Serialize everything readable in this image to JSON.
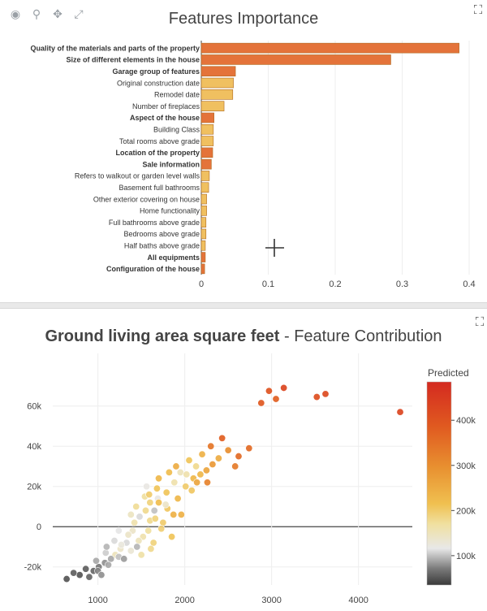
{
  "chart_data": [
    {
      "type": "bar",
      "orientation": "horizontal",
      "title": "Features Importance",
      "categories": [
        "Quality of the materials and parts of the property",
        "Size of different elements in the house",
        "Garage group of features",
        "Original construction date",
        "Remodel date",
        "Number of fireplaces",
        "Aspect of the house",
        "Building Class",
        "Total rooms above grade",
        "Location of the property",
        "Sale information",
        "Refers to walkout or garden level walls",
        "Basement full bathrooms",
        "Other exterior covering on house",
        "Home functionality",
        "Full bathrooms above grade",
        "Bedrooms above grade",
        "Half baths above grade",
        "All equipments",
        "Configuration of the house"
      ],
      "values": [
        0.385,
        0.283,
        0.051,
        0.048,
        0.047,
        0.034,
        0.019,
        0.018,
        0.018,
        0.017,
        0.015,
        0.012,
        0.011,
        0.008,
        0.008,
        0.007,
        0.007,
        0.006,
        0.006,
        0.005
      ],
      "group_flags": [
        true,
        true,
        true,
        false,
        false,
        false,
        true,
        false,
        false,
        true,
        true,
        false,
        false,
        false,
        false,
        false,
        false,
        false,
        true,
        true
      ],
      "xlim": [
        0,
        0.4
      ],
      "xticks": [
        "0",
        "0.1",
        "0.2",
        "0.3",
        "0.4"
      ],
      "colors": {
        "group": "#e4733a",
        "single": "#f0c060",
        "edge": "#b06a20"
      }
    },
    {
      "type": "scatter",
      "title_bold": "Ground living area square feet",
      "title_rest": " - Feature Contribution",
      "xlim": [
        480,
        4620
      ],
      "ylim": [
        -29000,
        72000
      ],
      "xticks": [
        1000,
        2000,
        3000,
        4000
      ],
      "yticks": [
        "-20k",
        "0",
        "20k",
        "40k",
        "60k"
      ],
      "yticks_values": [
        -20000,
        0,
        20000,
        40000,
        60000
      ],
      "colorbar": {
        "title": "Predicted",
        "ticks": [
          "100k",
          "200k",
          "300k",
          "400k"
        ],
        "tick_values": [
          100000,
          200000,
          300000,
          400000
        ],
        "range": [
          35000,
          485000
        ]
      },
      "points": [
        [
          4480,
          57000,
          430000
        ],
        [
          3140,
          69000,
          430000
        ],
        [
          2970,
          67500,
          400000
        ],
        [
          3520,
          64500,
          410000
        ],
        [
          3620,
          66000,
          420000
        ],
        [
          3050,
          63500,
          380000
        ],
        [
          2880,
          61500,
          390000
        ],
        [
          2740,
          39000,
          360000
        ],
        [
          2430,
          44000,
          380000
        ],
        [
          2620,
          35000,
          360000
        ],
        [
          2580,
          30000,
          330000
        ],
        [
          2300,
          40000,
          340000
        ],
        [
          2500,
          38000,
          300000
        ],
        [
          2390,
          34000,
          250000
        ],
        [
          2200,
          36000,
          240000
        ],
        [
          2050,
          33000,
          210000
        ],
        [
          2130,
          30000,
          180000
        ],
        [
          2250,
          28000,
          260000
        ],
        [
          1950,
          27000,
          150000
        ],
        [
          2100,
          24000,
          230000
        ],
        [
          1880,
          22000,
          160000
        ],
        [
          2010,
          20000,
          200000
        ],
        [
          1790,
          17000,
          210000
        ],
        [
          1690,
          14000,
          120000
        ],
        [
          1600,
          12000,
          190000
        ],
        [
          1550,
          8000,
          180000
        ],
        [
          1480,
          5000,
          110000
        ],
        [
          1600,
          3000,
          180000
        ],
        [
          1750,
          2000,
          200000
        ],
        [
          1870,
          6000,
          240000
        ],
        [
          1400,
          -2000,
          140000
        ],
        [
          1520,
          -5000,
          160000
        ],
        [
          1640,
          -8000,
          190000
        ],
        [
          1330,
          -8000,
          110000
        ],
        [
          1260,
          -11000,
          140000
        ],
        [
          1200,
          -14000,
          150000
        ],
        [
          1150,
          -16000,
          90000
        ],
        [
          1080,
          -18000,
          80000
        ],
        [
          1010,
          -20000,
          70000
        ],
        [
          950,
          -22000,
          60000
        ],
        [
          860,
          -21000,
          55000
        ],
        [
          790,
          -24000,
          50000
        ],
        [
          720,
          -23000,
          55000
        ],
        [
          640,
          -26000,
          50000
        ],
        [
          1440,
          10000,
          175000
        ],
        [
          1700,
          12000,
          220000
        ],
        [
          1580,
          -2000,
          170000
        ],
        [
          1470,
          -7000,
          150000
        ],
        [
          1380,
          -12000,
          130000
        ],
        [
          1240,
          -15000,
          100000
        ],
        [
          1120,
          -19000,
          90000
        ],
        [
          1000,
          -22000,
          75000
        ],
        [
          900,
          -25000,
          60000
        ],
        [
          1680,
          19000,
          210000
        ],
        [
          1800,
          9000,
          205000
        ],
        [
          1920,
          14000,
          230000
        ],
        [
          1540,
          15000,
          170000
        ],
        [
          1660,
          4000,
          190000
        ],
        [
          1350,
          -4000,
          140000
        ],
        [
          1270,
          -9000,
          125000
        ],
        [
          1090,
          -13000,
          105000
        ],
        [
          980,
          -17000,
          90000
        ],
        [
          1820,
          27000,
          220000
        ],
        [
          2180,
          26000,
          230000
        ],
        [
          2320,
          31000,
          280000
        ],
        [
          2080,
          18000,
          205000
        ],
        [
          1730,
          -1000,
          195000
        ],
        [
          1610,
          -11000,
          180000
        ],
        [
          1420,
          2000,
          160000
        ],
        [
          1500,
          -14000,
          165000
        ],
        [
          1190,
          -7000,
          110000
        ],
        [
          2260,
          22000,
          320000
        ],
        [
          1960,
          6000,
          240000
        ],
        [
          1850,
          -5000,
          210000
        ],
        [
          1560,
          20000,
          120000
        ],
        [
          1650,
          8000,
          100000
        ],
        [
          1450,
          -10000,
          95000
        ],
        [
          1300,
          -16000,
          85000
        ],
        [
          1780,
          11000,
          140000
        ],
        [
          2020,
          26000,
          160000
        ],
        [
          1900,
          30000,
          250000
        ],
        [
          1700,
          24000,
          230000
        ],
        [
          2140,
          22000,
          260000
        ],
        [
          1590,
          16000,
          200000
        ],
        [
          1380,
          6000,
          145000
        ],
        [
          1240,
          -2000,
          115000
        ],
        [
          1100,
          -10000,
          95000
        ],
        [
          1040,
          -24000,
          80000
        ]
      ]
    }
  ]
}
